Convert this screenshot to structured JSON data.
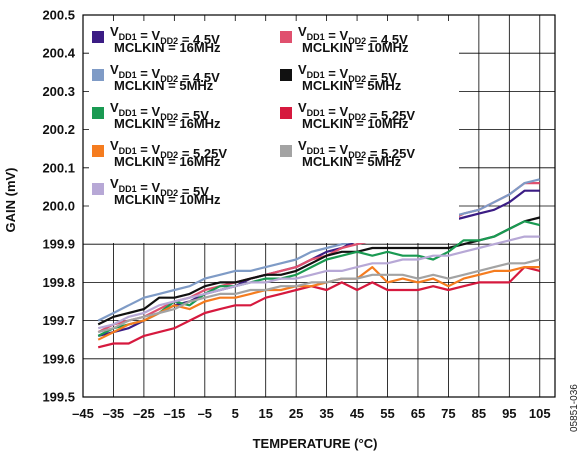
{
  "chart_data": {
    "type": "line",
    "xlabel": "TEMPERATURE (°C)",
    "ylabel": "GAIN (mV)",
    "xlim": [
      -45,
      110
    ],
    "ylim": [
      199.5,
      200.5
    ],
    "x_ticks": [
      -45,
      -35,
      -25,
      -15,
      -5,
      5,
      15,
      25,
      35,
      45,
      55,
      65,
      75,
      85,
      95,
      105
    ],
    "x_tick_labels": [
      "–45",
      "–35",
      "–25",
      "–15",
      "–5",
      "5",
      "15",
      "25",
      "35",
      "45",
      "55",
      "65",
      "75",
      "85",
      "95",
      "105"
    ],
    "y_ticks": [
      199.5,
      199.6,
      199.7,
      199.8,
      199.9,
      200.0,
      200.1,
      200.2,
      200.3,
      200.4,
      200.5
    ],
    "y_tick_labels": [
      "199.5",
      "199.6",
      "199.7",
      "199.8",
      "199.9",
      "200.0",
      "200.1",
      "200.2",
      "200.3",
      "200.4",
      "200.5"
    ],
    "grid": true,
    "legend_placement": "top-left",
    "figure_id": "05851-036",
    "series": [
      {
        "name1": "VDD1 = VDD2 = 4.5V",
        "name2": "MCLKIN = 16MHz",
        "color": "#3b1c84",
        "x": [
          -40,
          -35,
          -30,
          -25,
          -20,
          -15,
          -10,
          -5,
          0,
          5,
          10,
          15,
          20,
          25,
          30,
          35,
          40,
          45,
          50,
          55,
          60,
          65,
          70,
          75,
          80,
          85,
          90,
          95,
          100,
          105
        ],
        "y": [
          199.66,
          199.67,
          199.68,
          199.7,
          199.72,
          199.74,
          199.75,
          199.77,
          199.78,
          199.79,
          199.81,
          199.82,
          199.83,
          199.84,
          199.86,
          199.88,
          199.89,
          199.91,
          199.91,
          199.92,
          199.93,
          199.95,
          199.95,
          199.96,
          199.97,
          199.98,
          199.99,
          200.01,
          200.04,
          200.04
        ]
      },
      {
        "name1": "VDD1 = VDD2 = 4.5V",
        "name2": "MCLKIN = 10MHz",
        "color": "#e0506e",
        "x": [
          -40,
          -35,
          -30,
          -25,
          -20,
          -15,
          -10,
          -5,
          0,
          5,
          10,
          15,
          20,
          25,
          30,
          35,
          40,
          45,
          50,
          55,
          60,
          65,
          70,
          75,
          80,
          85,
          90,
          95,
          100,
          105
        ],
        "y": [
          199.67,
          199.69,
          199.7,
          199.71,
          199.73,
          199.75,
          199.76,
          199.78,
          199.79,
          199.8,
          199.81,
          199.82,
          199.83,
          199.84,
          199.86,
          199.87,
          199.89,
          199.9,
          199.91,
          199.92,
          199.94,
          199.95,
          199.95,
          199.96,
          199.98,
          199.99,
          200.01,
          200.03,
          200.06,
          200.06
        ]
      },
      {
        "name1": "VDD1 = VDD2 = 4.5V",
        "name2": "MCLKIN = 5MHz",
        "color": "#7f9bc6",
        "x": [
          -40,
          -35,
          -30,
          -25,
          -20,
          -15,
          -10,
          -5,
          0,
          5,
          10,
          15,
          20,
          25,
          30,
          35,
          40,
          45,
          50,
          55,
          60,
          65,
          70,
          75,
          80,
          85,
          90,
          95,
          100,
          105
        ],
        "y": [
          199.7,
          199.72,
          199.74,
          199.76,
          199.77,
          199.78,
          199.79,
          199.81,
          199.82,
          199.83,
          199.83,
          199.84,
          199.85,
          199.86,
          199.88,
          199.89,
          199.9,
          199.91,
          199.92,
          199.93,
          199.94,
          199.95,
          199.96,
          199.97,
          199.98,
          199.99,
          200.01,
          200.03,
          200.06,
          200.07
        ]
      },
      {
        "name1": "VDD1 = VDD2 = 5V",
        "name2": "MCLKIN = 5MHz",
        "color": "#111111",
        "x": [
          -40,
          -35,
          -30,
          -25,
          -20,
          -15,
          -10,
          -5,
          0,
          5,
          10,
          15,
          20,
          25,
          30,
          35,
          40,
          45,
          50,
          55,
          60,
          65,
          70,
          75,
          80,
          85,
          90,
          95,
          100,
          105
        ],
        "y": [
          199.69,
          199.71,
          199.72,
          199.73,
          199.76,
          199.76,
          199.77,
          199.79,
          199.8,
          199.8,
          199.81,
          199.82,
          199.82,
          199.83,
          199.85,
          199.87,
          199.88,
          199.88,
          199.89,
          199.89,
          199.89,
          199.89,
          199.89,
          199.89,
          199.9,
          199.91,
          199.92,
          199.94,
          199.96,
          199.97
        ]
      },
      {
        "name1": "VDD1 = VDD2 = 5V",
        "name2": "MCLKIN = 16MHz",
        "color": "#1a9a52",
        "x": [
          -40,
          -35,
          -30,
          -25,
          -20,
          -15,
          -10,
          -5,
          0,
          5,
          10,
          15,
          20,
          25,
          30,
          35,
          40,
          45,
          50,
          55,
          60,
          65,
          70,
          75,
          80,
          85,
          90,
          95,
          100,
          105
        ],
        "y": [
          199.66,
          199.68,
          199.69,
          199.7,
          199.72,
          199.75,
          199.74,
          199.77,
          199.79,
          199.79,
          199.8,
          199.81,
          199.81,
          199.82,
          199.84,
          199.86,
          199.87,
          199.88,
          199.87,
          199.88,
          199.87,
          199.87,
          199.86,
          199.88,
          199.91,
          199.91,
          199.92,
          199.94,
          199.96,
          199.95
        ]
      },
      {
        "name1": "VDD1 = VDD2 = 5.25V",
        "name2": "MCLKIN = 10MHz",
        "color": "#d6193e",
        "x": [
          -40,
          -35,
          -30,
          -25,
          -20,
          -15,
          -10,
          -5,
          0,
          5,
          10,
          15,
          20,
          25,
          30,
          35,
          40,
          45,
          50,
          55,
          60,
          65,
          70,
          75,
          80,
          85,
          90,
          95,
          100,
          105
        ],
        "y": [
          199.63,
          199.64,
          199.64,
          199.66,
          199.67,
          199.68,
          199.7,
          199.72,
          199.73,
          199.74,
          199.74,
          199.76,
          199.77,
          199.78,
          199.79,
          199.78,
          199.8,
          199.78,
          199.8,
          199.78,
          199.78,
          199.78,
          199.79,
          199.78,
          199.79,
          199.8,
          199.8,
          199.8,
          199.84,
          199.83
        ]
      },
      {
        "name1": "VDD1 = VDD2 = 5.25V",
        "name2": "MCLKIN = 16MHz",
        "color": "#f57c1f",
        "x": [
          -40,
          -35,
          -30,
          -25,
          -20,
          -15,
          -10,
          -5,
          0,
          5,
          10,
          15,
          20,
          25,
          30,
          35,
          40,
          45,
          50,
          55,
          60,
          65,
          70,
          75,
          80,
          85,
          90,
          95,
          100,
          105
        ],
        "y": [
          199.65,
          199.67,
          199.69,
          199.7,
          199.72,
          199.74,
          199.73,
          199.75,
          199.76,
          199.76,
          199.77,
          199.78,
          199.78,
          199.79,
          199.79,
          199.8,
          199.81,
          199.81,
          199.84,
          199.8,
          199.81,
          199.8,
          199.81,
          199.79,
          199.81,
          199.82,
          199.83,
          199.83,
          199.84,
          199.84
        ]
      },
      {
        "name1": "VDD1 = VDD2 = 5.25V",
        "name2": "MCLKIN = 5MHz",
        "color": "#a3a3a3",
        "x": [
          -40,
          -35,
          -30,
          -25,
          -20,
          -15,
          -10,
          -5,
          0,
          5,
          10,
          15,
          20,
          25,
          30,
          35,
          40,
          45,
          50,
          55,
          60,
          65,
          70,
          75,
          80,
          85,
          90,
          95,
          100,
          105
        ],
        "y": [
          199.67,
          199.68,
          199.7,
          199.71,
          199.72,
          199.73,
          199.75,
          199.76,
          199.77,
          199.77,
          199.78,
          199.78,
          199.79,
          199.79,
          199.8,
          199.8,
          199.81,
          199.81,
          199.82,
          199.82,
          199.82,
          199.81,
          199.82,
          199.81,
          199.82,
          199.83,
          199.84,
          199.85,
          199.85,
          199.86
        ]
      },
      {
        "name1": "VDD1 = VDD2 = 5V",
        "name2": "MCLKIN = 10MHz",
        "color": "#b7a8d6",
        "x": [
          -40,
          -35,
          -30,
          -25,
          -20,
          -15,
          -10,
          -5,
          0,
          5,
          10,
          15,
          20,
          25,
          30,
          35,
          40,
          45,
          50,
          55,
          60,
          65,
          70,
          75,
          80,
          85,
          90,
          95,
          100,
          105
        ],
        "y": [
          199.68,
          199.69,
          199.71,
          199.72,
          199.74,
          199.75,
          199.76,
          199.77,
          199.78,
          199.79,
          199.8,
          199.8,
          199.81,
          199.81,
          199.82,
          199.83,
          199.83,
          199.84,
          199.85,
          199.85,
          199.86,
          199.86,
          199.87,
          199.87,
          199.88,
          199.89,
          199.9,
          199.91,
          199.92,
          199.92
        ]
      }
    ]
  }
}
